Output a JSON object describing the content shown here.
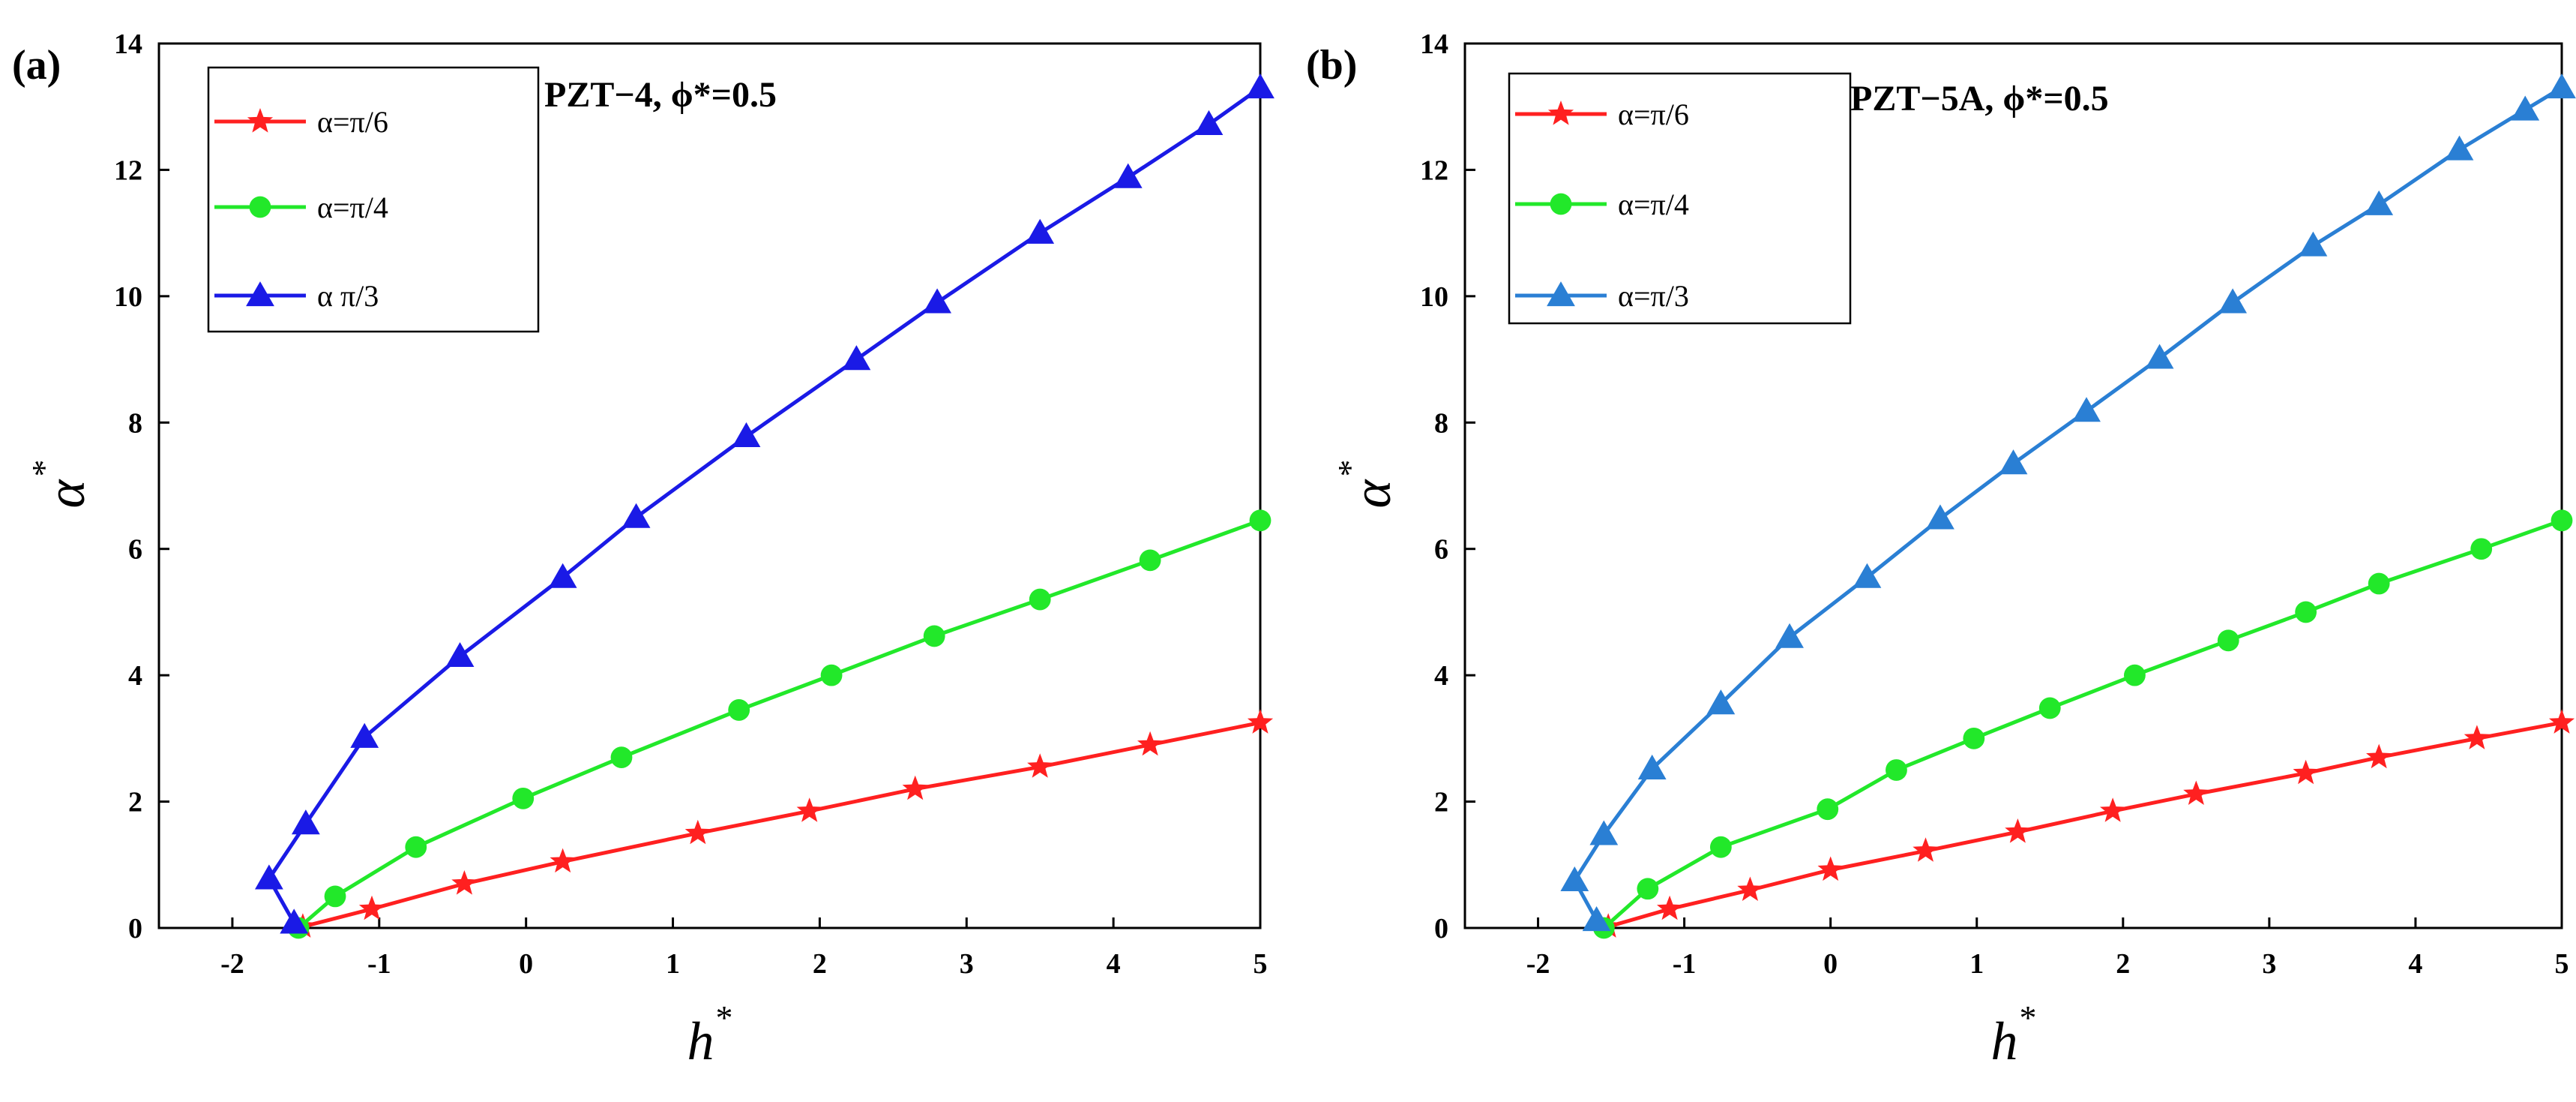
{
  "chart_data": [
    {
      "type": "line",
      "panel_label": "(a)",
      "annotation": "PZT−4,   ϕ*=0.5",
      "xlabel": "h*",
      "ylabel": "α*",
      "xlim": [
        -2.5,
        5
      ],
      "ylim": [
        0,
        14
      ],
      "xticks": [
        -2,
        -1,
        0,
        1,
        2,
        3,
        4,
        5
      ],
      "yticks": [
        0,
        2,
        4,
        6,
        8,
        10,
        12,
        14
      ],
      "xtick_labels": [
        "-2",
        "-1",
        "0",
        "1",
        "2",
        "3",
        "4",
        "5"
      ],
      "ytick_labels": [
        "0",
        "2",
        "4",
        "6",
        "8",
        "10",
        "12",
        "14"
      ],
      "legend_position": "top-left",
      "series": [
        {
          "name": "α=π/6",
          "color": "#ff2020",
          "marker": "star",
          "x": [
            -1.52,
            -1.05,
            -0.42,
            0.25,
            1.17,
            1.93,
            2.65,
            3.5,
            4.25,
            5.0
          ],
          "y": [
            0.02,
            0.3,
            0.7,
            1.05,
            1.5,
            1.85,
            2.2,
            2.55,
            2.9,
            3.25
          ]
        },
        {
          "name": "α=π/4",
          "color": "#22e82a",
          "marker": "circle",
          "x": [
            -1.55,
            -1.3,
            -0.75,
            -0.02,
            0.65,
            1.45,
            2.08,
            2.78,
            3.5,
            4.25,
            5.0
          ],
          "y": [
            0.0,
            0.5,
            1.28,
            2.05,
            2.7,
            3.45,
            4.0,
            4.62,
            5.2,
            5.82,
            6.45
          ]
        },
        {
          "name": "α  π/3",
          "color": "#1a1ae6",
          "marker": "triangle",
          "x": [
            -1.58,
            -1.75,
            -1.5,
            -1.1,
            -0.45,
            0.25,
            0.75,
            1.5,
            2.25,
            2.8,
            3.5,
            4.1,
            4.65,
            5.0
          ],
          "y": [
            0.08,
            0.78,
            1.65,
            3.02,
            4.3,
            5.55,
            6.5,
            7.78,
            9.0,
            9.9,
            11.0,
            11.88,
            12.72,
            13.3
          ]
        }
      ]
    },
    {
      "type": "line",
      "panel_label": "(b)",
      "annotation": "PZT−5A, ϕ*=0.5",
      "xlabel": "h*",
      "ylabel": "α*",
      "xlim": [
        -2.5,
        5
      ],
      "ylim": [
        0,
        14
      ],
      "xticks": [
        -2,
        -1,
        0,
        1,
        2,
        3,
        4,
        5
      ],
      "yticks": [
        0,
        2,
        4,
        6,
        8,
        10,
        12,
        14
      ],
      "xtick_labels": [
        "-2",
        "-1",
        "0",
        "1",
        "2",
        "3",
        "4",
        "5"
      ],
      "ytick_labels": [
        "0",
        "2",
        "4",
        "6",
        "8",
        "10",
        "12",
        "14"
      ],
      "legend_position": "top-left",
      "series": [
        {
          "name": "α=π/6",
          "color": "#ff2020",
          "marker": "star",
          "x": [
            -1.52,
            -1.1,
            -0.55,
            0.0,
            0.65,
            1.28,
            1.93,
            2.5,
            3.25,
            3.75,
            4.42,
            5.0
          ],
          "y": [
            0.02,
            0.3,
            0.6,
            0.92,
            1.22,
            1.52,
            1.85,
            2.12,
            2.45,
            2.7,
            3.0,
            3.25
          ]
        },
        {
          "name": "α=π/4",
          "color": "#22e82a",
          "marker": "circle",
          "x": [
            -1.55,
            -1.25,
            -0.75,
            -0.02,
            0.45,
            0.98,
            1.5,
            2.08,
            2.72,
            3.25,
            3.75,
            4.45,
            5.0
          ],
          "y": [
            0.0,
            0.62,
            1.28,
            1.88,
            2.5,
            3.0,
            3.48,
            4.0,
            4.55,
            5.0,
            5.45,
            6.0,
            6.45
          ]
        },
        {
          "name": "α=π/3",
          "color": "#2a7fd4",
          "marker": "triangle",
          "x": [
            -1.6,
            -1.75,
            -1.55,
            -1.22,
            -0.75,
            -0.28,
            0.25,
            0.75,
            1.25,
            1.75,
            2.25,
            2.75,
            3.3,
            3.75,
            4.3,
            4.75,
            5.0
          ],
          "y": [
            0.12,
            0.75,
            1.48,
            2.52,
            3.55,
            4.6,
            5.55,
            6.48,
            7.35,
            8.18,
            9.02,
            9.9,
            10.8,
            11.45,
            12.32,
            12.95,
            13.3
          ]
        }
      ]
    }
  ]
}
